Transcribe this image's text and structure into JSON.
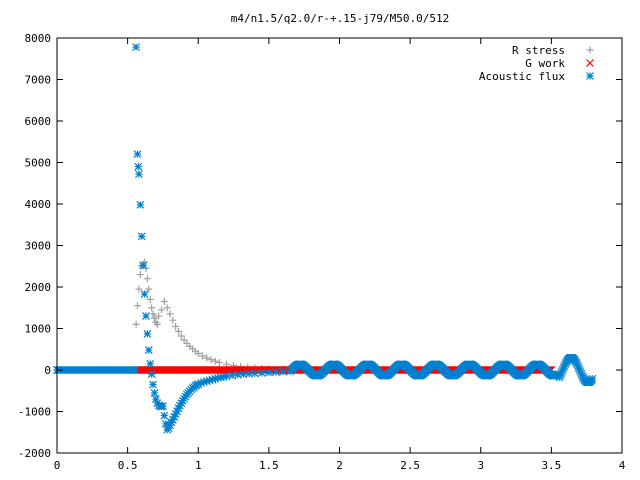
{
  "chart_data": {
    "type": "scatter",
    "title": "m4/n1.5/q2.0/r-+.15-j79/M50.0/512",
    "xlabel": "",
    "ylabel": "",
    "xlim": [
      0,
      4
    ],
    "ylim": [
      -2000,
      8000
    ],
    "xticks": [
      0,
      0.5,
      1,
      1.5,
      2,
      2.5,
      3,
      3.5,
      4
    ],
    "xtick_labels": [
      "0",
      "0.5",
      "1",
      "1.5",
      "2",
      "2.5",
      "3",
      "3.5",
      "4"
    ],
    "yticks": [
      -2000,
      -1000,
      0,
      1000,
      2000,
      3000,
      4000,
      5000,
      6000,
      7000,
      8000
    ],
    "ytick_labels": [
      "-2000",
      "-1000",
      "0",
      "1000",
      "2000",
      "3000",
      "4000",
      "5000",
      "6000",
      "7000",
      "8000"
    ],
    "grid": false,
    "legend_position": "top-right",
    "series": [
      {
        "name": "R stress",
        "marker": "plus",
        "color": "#a0a0a0",
        "points": [
          [
            0.56,
            1100
          ],
          [
            0.57,
            1550
          ],
          [
            0.58,
            1950
          ],
          [
            0.59,
            2300
          ],
          [
            0.6,
            2500
          ],
          [
            0.61,
            2550
          ],
          [
            0.62,
            2600
          ],
          [
            0.63,
            2450
          ],
          [
            0.64,
            2200
          ],
          [
            0.65,
            1950
          ],
          [
            0.66,
            1700
          ],
          [
            0.67,
            1500
          ],
          [
            0.68,
            1350
          ],
          [
            0.69,
            1250
          ],
          [
            0.7,
            1150
          ],
          [
            0.71,
            1100
          ],
          [
            0.72,
            1300
          ],
          [
            0.74,
            1450
          ],
          [
            0.76,
            1650
          ],
          [
            0.78,
            1500
          ],
          [
            0.8,
            1350
          ],
          [
            0.82,
            1200
          ],
          [
            0.84,
            1050
          ],
          [
            0.86,
            930
          ],
          [
            0.88,
            820
          ],
          [
            0.9,
            720
          ],
          [
            0.92,
            640
          ],
          [
            0.94,
            570
          ],
          [
            0.96,
            510
          ],
          [
            0.98,
            450
          ],
          [
            1.0,
            400
          ],
          [
            1.03,
            340
          ],
          [
            1.06,
            290
          ],
          [
            1.09,
            250
          ],
          [
            1.12,
            210
          ],
          [
            1.15,
            180
          ],
          [
            1.2,
            140
          ],
          [
            1.25,
            110
          ],
          [
            1.3,
            85
          ],
          [
            1.35,
            65
          ],
          [
            1.4,
            50
          ],
          [
            1.45,
            40
          ],
          [
            1.5,
            30
          ],
          [
            1.6,
            20
          ],
          [
            1.7,
            10
          ]
        ]
      },
      {
        "name": "G work",
        "marker": "cross",
        "color": "#ff0000",
        "points": [
          [
            0.56,
            0
          ],
          [
            3.5,
            0
          ]
        ]
      },
      {
        "name": "Acoustic flux",
        "marker": "star",
        "color": "#0080d0",
        "points": [
          [
            0.56,
            7780
          ],
          [
            0.57,
            5200
          ],
          [
            0.575,
            4900
          ],
          [
            0.58,
            4720
          ],
          [
            0.59,
            3980
          ],
          [
            0.6,
            3220
          ],
          [
            0.61,
            2520
          ],
          [
            0.62,
            1830
          ],
          [
            0.63,
            1300
          ],
          [
            0.64,
            870
          ],
          [
            0.65,
            480
          ],
          [
            0.66,
            150
          ],
          [
            0.67,
            -100
          ],
          [
            0.68,
            -350
          ],
          [
            0.69,
            -550
          ],
          [
            0.7,
            -700
          ],
          [
            0.71,
            -800
          ],
          [
            0.72,
            -850
          ],
          [
            0.73,
            -870
          ],
          [
            0.74,
            -880
          ],
          [
            0.75,
            -870
          ],
          [
            0.76,
            -1100
          ],
          [
            0.77,
            -1300
          ],
          [
            0.78,
            -1440
          ],
          [
            0.79,
            -1400
          ],
          [
            0.8,
            -1330
          ],
          [
            0.81,
            -1260
          ],
          [
            0.82,
            -1200
          ],
          [
            0.83,
            -1130
          ],
          [
            0.84,
            -1060
          ],
          [
            0.85,
            -990
          ],
          [
            0.86,
            -920
          ],
          [
            0.87,
            -860
          ],
          [
            0.88,
            -800
          ],
          [
            0.89,
            -740
          ],
          [
            0.9,
            -690
          ],
          [
            0.91,
            -640
          ],
          [
            0.92,
            -590
          ],
          [
            0.93,
            -550
          ],
          [
            0.94,
            -510
          ],
          [
            0.95,
            -470
          ],
          [
            0.96,
            -440
          ],
          [
            0.97,
            -410
          ],
          [
            0.98,
            -380
          ],
          [
            0.99,
            -360
          ],
          [
            1.0,
            -340
          ],
          [
            1.02,
            -310
          ],
          [
            1.04,
            -290
          ],
          [
            1.06,
            -270
          ],
          [
            1.08,
            -250
          ],
          [
            1.1,
            -230
          ],
          [
            1.12,
            -210
          ],
          [
            1.14,
            -190
          ],
          [
            1.16,
            -180
          ],
          [
            1.18,
            -165
          ],
          [
            1.2,
            -150
          ],
          [
            1.24,
            -130
          ],
          [
            1.28,
            -115
          ],
          [
            1.32,
            -100
          ],
          [
            1.36,
            -90
          ],
          [
            1.4,
            -80
          ],
          [
            1.45,
            -70
          ],
          [
            1.5,
            -60
          ],
          [
            1.55,
            -50
          ],
          [
            1.6,
            -40
          ],
          [
            1.65,
            -30
          ]
        ]
      }
    ]
  }
}
